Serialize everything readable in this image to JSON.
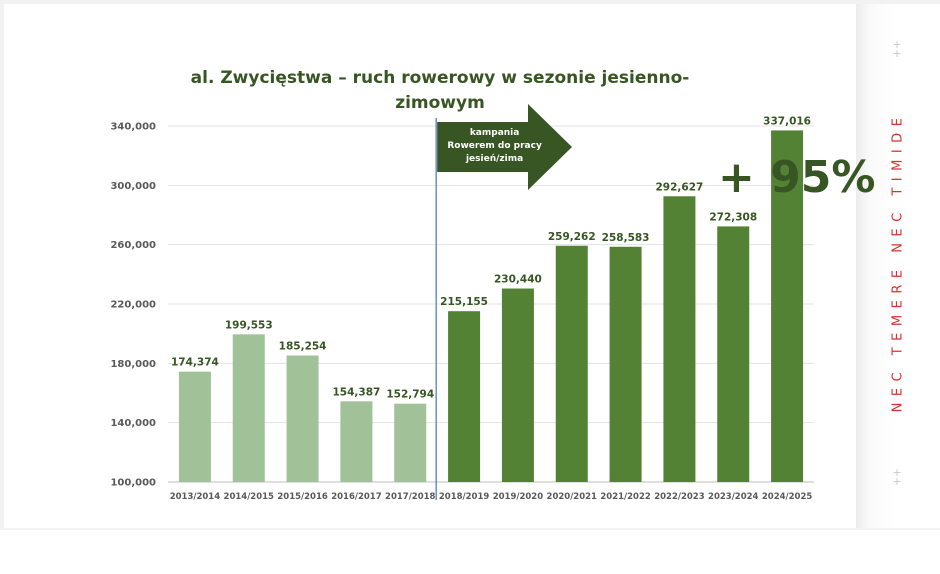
{
  "chart_data": {
    "type": "bar",
    "title": "al. Zwycięstwa – ruch rowerowy w sezonie jesienno-zimowym",
    "title_lines": [
      "al. Zwycięstwa – ruch rowerowy w sezonie jesienno-",
      "zimowym"
    ],
    "categories": [
      "2013/2014",
      "2014/2015",
      "2015/2016",
      "2016/2017",
      "2017/2018",
      "2018/2019",
      "2019/2020",
      "2020/2021",
      "2021/2022",
      "2022/2023",
      "2023/2024",
      "2024/2025"
    ],
    "values": [
      174374,
      199553,
      185254,
      154387,
      152794,
      215155,
      230440,
      259262,
      258583,
      292627,
      272308,
      337016
    ],
    "value_labels": [
      "174,374",
      "199,553",
      "185,254",
      "154,387",
      "152,794",
      "215,155",
      "230,440",
      "259,262",
      "258,583",
      "292,627",
      "272,308",
      "337,016"
    ],
    "ylim": [
      100000,
      340000
    ],
    "yticks": [
      100000,
      140000,
      180000,
      220000,
      260000,
      300000,
      340000
    ],
    "ytick_labels": [
      "100,000",
      "140,000",
      "180,000",
      "220,000",
      "260,000",
      "300,000",
      "340,000"
    ],
    "grid": true,
    "xlabel": "",
    "ylabel": "",
    "colors": {
      "before_campaign": "#a1c199",
      "after_campaign": "#548235",
      "divider_line": "#4472c4",
      "arrow": "#375623",
      "text_dark_green": "#375623"
    },
    "campaign_start_index": 5,
    "annotations": {
      "campaign_arrow_lines": [
        "kampania",
        "Rowerem do pracy",
        "jesień/zima"
      ],
      "growth_label": "+ 95%"
    }
  },
  "sidebar": {
    "motto": "NEC TEMERE NEC TIMIDE",
    "color": "#d6312e"
  }
}
